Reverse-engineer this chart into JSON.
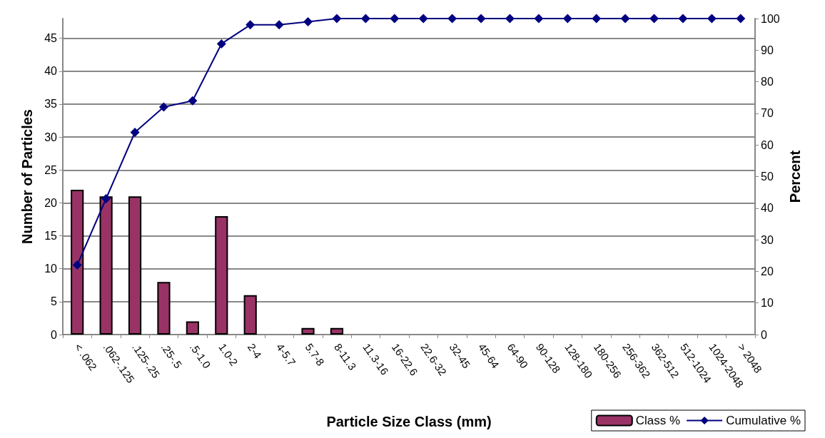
{
  "chart_data": {
    "type": "bar",
    "categories": [
      "< .062",
      ".062-.125",
      ".125-.25",
      ".25-.5",
      ".5-1.0",
      "1.0-2",
      "2-4",
      "4-5.7",
      "5.7-8",
      "8-11.3",
      "11.3-16",
      "16-22.6",
      "22.6-32",
      "32-45",
      "45-64",
      "64-90",
      "90-128",
      "128-180",
      "180-256",
      "256-362",
      "362-512",
      "512-1024",
      "1024-2048",
      "> 2048"
    ],
    "series": [
      {
        "name": "Class %",
        "color": "#993366",
        "values": [
          22,
          21,
          21,
          8,
          2,
          18,
          6,
          0,
          1,
          1,
          0,
          0,
          0,
          0,
          0,
          0,
          0,
          0,
          0,
          0,
          0,
          0,
          0,
          0
        ]
      },
      {
        "name": "Cumulative %",
        "type": "line",
        "axis": "y2",
        "color": "#000080",
        "values": [
          22,
          43,
          64,
          72,
          74,
          92,
          98,
          98,
          99,
          100,
          100,
          100,
          100,
          100,
          100,
          100,
          100,
          100,
          100,
          100,
          100,
          100,
          100,
          100
        ]
      }
    ],
    "xlabel": "Particle Size Class (mm)",
    "ylabel": "Number of Particles",
    "y2label": "Percent",
    "ylim": [
      0,
      48
    ],
    "yticks": [
      0,
      5,
      10,
      15,
      20,
      25,
      30,
      35,
      40,
      45
    ],
    "y2lim": [
      0,
      100
    ],
    "y2ticks": [
      0,
      10,
      20,
      30,
      40,
      50,
      60,
      70,
      80,
      90,
      100
    ],
    "grid": "y",
    "legend": "bottom right",
    "marker": "diamond",
    "line_style": "solid"
  }
}
